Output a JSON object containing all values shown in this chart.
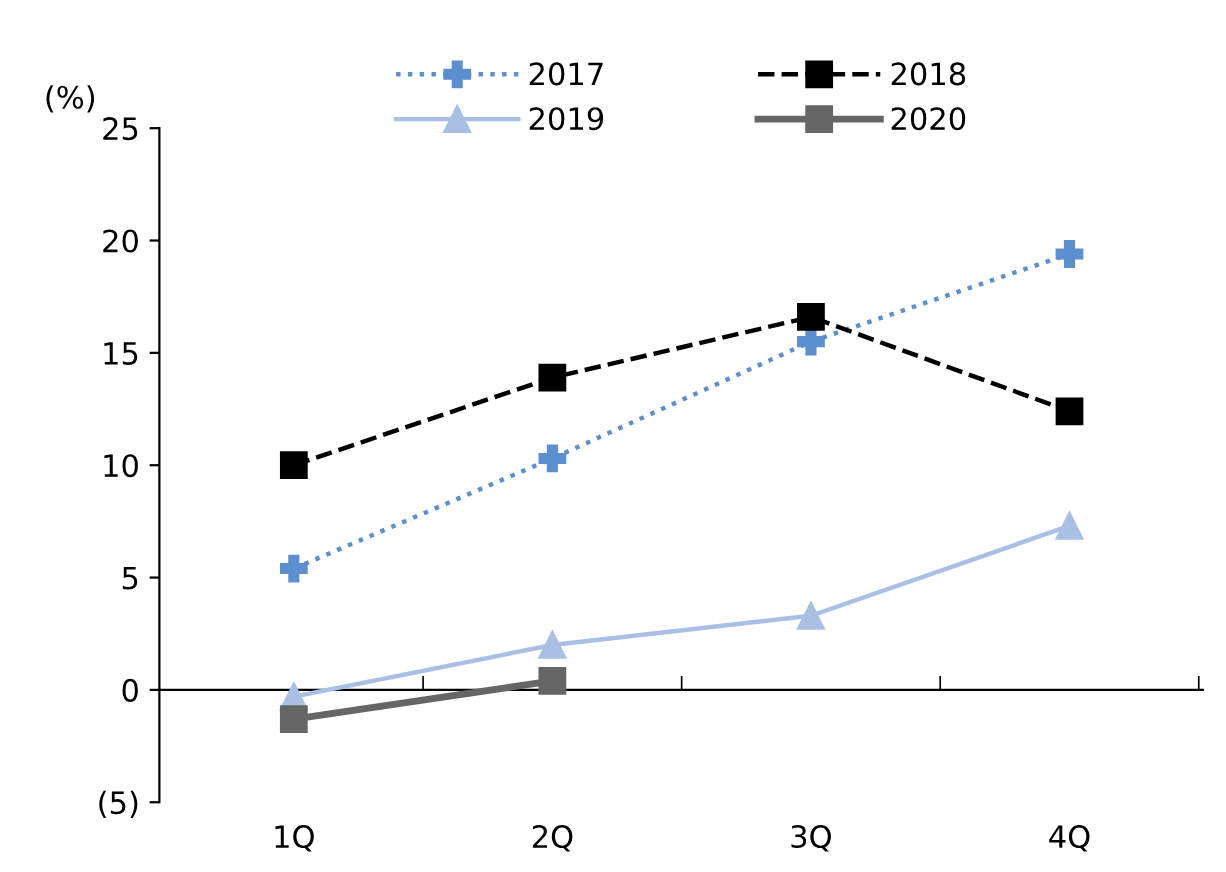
{
  "chart_data": {
    "type": "line",
    "ylabel": "(%)",
    "categories": [
      "1Q",
      "2Q",
      "3Q",
      "4Q"
    ],
    "series": [
      {
        "name": "2017",
        "color": "#5b8fd0",
        "values": [
          5.4,
          10.3,
          15.5,
          19.4
        ],
        "marker": "cross",
        "line_style": "dotted"
      },
      {
        "name": "2018",
        "color": "#000000",
        "values": [
          10.0,
          13.9,
          16.6,
          12.4
        ],
        "marker": "square",
        "line_style": "dashed"
      },
      {
        "name": "2019",
        "color": "#a9bfe3",
        "values": [
          -0.3,
          2.0,
          3.3,
          7.3
        ],
        "marker": "triangle",
        "line_style": "solid"
      },
      {
        "name": "2020",
        "color": "#666666",
        "values": [
          -1.3,
          0.4,
          null,
          null
        ],
        "marker": "square",
        "line_style": "solid"
      }
    ],
    "ylim": [
      -5,
      25
    ],
    "yticks": [
      {
        "value": -5,
        "label": "(5)"
      },
      0,
      5,
      10,
      15,
      20,
      25
    ],
    "ref_lines": [
      {
        "axis": "y",
        "value": 0,
        "color": "#000000",
        "line_style": "solid"
      }
    ],
    "grid": false,
    "legend": "top"
  }
}
